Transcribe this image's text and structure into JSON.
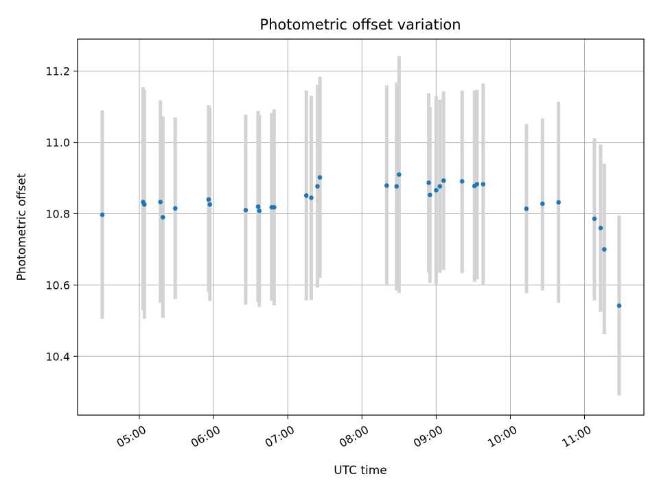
{
  "chart_data": {
    "type": "scatter",
    "title": "Photometric offset variation",
    "xlabel": "UTC time",
    "ylabel": "Photometric offset",
    "x_axis_kind": "time",
    "xlim": [
      "04:10",
      "11:48"
    ],
    "ylim": [
      10.235,
      11.29
    ],
    "grid": true,
    "x_ticks": [
      "05:00",
      "06:00",
      "07:00",
      "08:00",
      "09:00",
      "10:00",
      "11:00"
    ],
    "y_ticks": [
      "10.4",
      "10.6",
      "10.8",
      "11.0",
      "11.2"
    ],
    "point_color": "#1f77b4",
    "errorbar_color": "#d3d3d3",
    "series": [
      {
        "points": [
          {
            "x": "04:30",
            "y": 10.797,
            "y_low": 10.505,
            "y_high": 11.09
          },
          {
            "x": "05:03",
            "y": 10.833,
            "y_low": 10.53,
            "y_high": 11.155
          },
          {
            "x": "05:04",
            "y": 10.826,
            "y_low": 10.505,
            "y_high": 11.148
          },
          {
            "x": "05:17",
            "y": 10.833,
            "y_low": 10.55,
            "y_high": 11.118
          },
          {
            "x": "05:19",
            "y": 10.79,
            "y_low": 10.508,
            "y_high": 11.073
          },
          {
            "x": "05:29",
            "y": 10.815,
            "y_low": 10.56,
            "y_high": 11.07
          },
          {
            "x": "05:56",
            "y": 10.84,
            "y_low": 10.58,
            "y_high": 11.105
          },
          {
            "x": "05:57",
            "y": 10.826,
            "y_low": 10.555,
            "y_high": 11.098
          },
          {
            "x": "06:26",
            "y": 10.81,
            "y_low": 10.545,
            "y_high": 11.078
          },
          {
            "x": "06:36",
            "y": 10.82,
            "y_low": 10.553,
            "y_high": 11.088
          },
          {
            "x": "06:37",
            "y": 10.808,
            "y_low": 10.538,
            "y_high": 11.078
          },
          {
            "x": "06:47",
            "y": 10.818,
            "y_low": 10.555,
            "y_high": 11.083
          },
          {
            "x": "06:49",
            "y": 10.818,
            "y_low": 10.543,
            "y_high": 11.093
          },
          {
            "x": "07:15",
            "y": 10.851,
            "y_low": 10.557,
            "y_high": 11.146
          },
          {
            "x": "07:19",
            "y": 10.845,
            "y_low": 10.558,
            "y_high": 11.131
          },
          {
            "x": "07:24",
            "y": 10.877,
            "y_low": 10.593,
            "y_high": 11.162
          },
          {
            "x": "07:26",
            "y": 10.902,
            "y_low": 10.62,
            "y_high": 11.185
          },
          {
            "x": "08:20",
            "y": 10.879,
            "y_low": 10.598,
            "y_high": 11.16
          },
          {
            "x": "08:28",
            "y": 10.877,
            "y_low": 10.585,
            "y_high": 11.168
          },
          {
            "x": "08:30",
            "y": 10.91,
            "y_low": 10.578,
            "y_high": 11.242
          },
          {
            "x": "08:54",
            "y": 10.887,
            "y_low": 10.636,
            "y_high": 11.138
          },
          {
            "x": "08:55",
            "y": 10.853,
            "y_low": 10.606,
            "y_high": 11.1
          },
          {
            "x": "09:00",
            "y": 10.866,
            "y_low": 10.602,
            "y_high": 11.13
          },
          {
            "x": "09:03",
            "y": 10.877,
            "y_low": 10.634,
            "y_high": 11.12
          },
          {
            "x": "09:06",
            "y": 10.893,
            "y_low": 10.642,
            "y_high": 11.143
          },
          {
            "x": "09:21",
            "y": 10.891,
            "y_low": 10.633,
            "y_high": 11.146
          },
          {
            "x": "09:31",
            "y": 10.878,
            "y_low": 10.609,
            "y_high": 11.146
          },
          {
            "x": "09:33",
            "y": 10.883,
            "y_low": 10.616,
            "y_high": 11.148
          },
          {
            "x": "09:38",
            "y": 10.883,
            "y_low": 10.6,
            "y_high": 11.165
          },
          {
            "x": "10:13",
            "y": 10.814,
            "y_low": 10.577,
            "y_high": 11.052
          },
          {
            "x": "10:26",
            "y": 10.828,
            "y_low": 10.585,
            "y_high": 11.068
          },
          {
            "x": "10:39",
            "y": 10.832,
            "y_low": 10.55,
            "y_high": 11.114
          },
          {
            "x": "11:08",
            "y": 10.786,
            "y_low": 10.557,
            "y_high": 11.012
          },
          {
            "x": "11:13",
            "y": 10.76,
            "y_low": 10.525,
            "y_high": 10.994
          },
          {
            "x": "11:16",
            "y": 10.7,
            "y_low": 10.462,
            "y_high": 10.94
          },
          {
            "x": "11:28",
            "y": 10.542,
            "y_low": 10.29,
            "y_high": 10.795
          }
        ]
      }
    ]
  }
}
